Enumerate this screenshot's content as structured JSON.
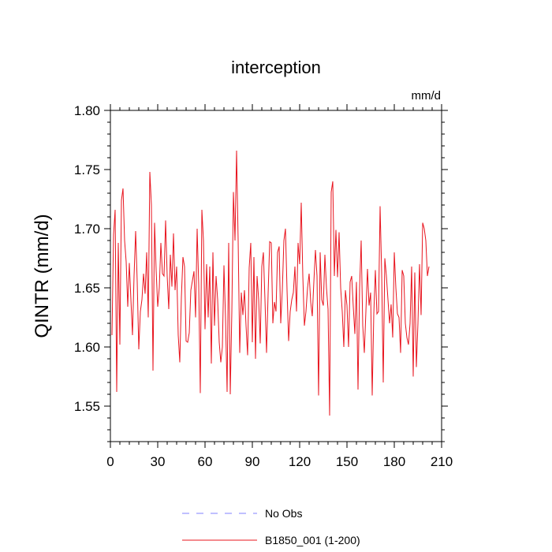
{
  "chart_data": {
    "type": "line",
    "title": "interception",
    "units_label": "mm/d",
    "ylabel": "QINTR  (mm/d)",
    "xlabel": "",
    "xlim": [
      0,
      210
    ],
    "ylim": [
      1.52,
      1.8
    ],
    "xticks": [
      0,
      30,
      60,
      90,
      120,
      150,
      180,
      210
    ],
    "xtick_labels": [
      "0",
      "30",
      "60",
      "90",
      "120",
      "150",
      "180",
      "210"
    ],
    "yticks": [
      1.55,
      1.6,
      1.65,
      1.7,
      1.75,
      1.8
    ],
    "ytick_labels": [
      "1.55",
      "1.60",
      "1.65",
      "1.70",
      "1.75",
      "1.80"
    ],
    "grid": false,
    "legend_position": "bottom-center",
    "series": [
      {
        "name": "No Obs",
        "color": "#8080ff",
        "style": "dashed",
        "values": []
      },
      {
        "name": "B1850_001 (1-200)",
        "color": "#e8141e",
        "style": "solid",
        "values": [
          1.61,
          1.695,
          1.716,
          1.562,
          1.688,
          1.602,
          1.724,
          1.734,
          1.69,
          1.672,
          1.634,
          1.671,
          1.64,
          1.61,
          1.66,
          1.698,
          1.655,
          1.598,
          1.63,
          1.64,
          1.662,
          1.645,
          1.68,
          1.625,
          1.748,
          1.72,
          1.58,
          1.705,
          1.665,
          1.634,
          1.65,
          1.688,
          1.662,
          1.66,
          1.707,
          1.66,
          1.632,
          1.678,
          1.651,
          1.696,
          1.648,
          1.668,
          1.61,
          1.587,
          1.642,
          1.676,
          1.668,
          1.605,
          1.604,
          1.612,
          1.648,
          1.656,
          1.664,
          1.625,
          1.7,
          1.652,
          1.561,
          1.716,
          1.69,
          1.615,
          1.67,
          1.625,
          1.668,
          1.586,
          1.68,
          1.618,
          1.66,
          1.64,
          1.604,
          1.587,
          1.6,
          1.669,
          1.624,
          1.562,
          1.688,
          1.56,
          1.63,
          1.731,
          1.69,
          1.766,
          1.69,
          1.595,
          1.646,
          1.627,
          1.648,
          1.618,
          1.593,
          1.667,
          1.688,
          1.604,
          1.676,
          1.59,
          1.66,
          1.64,
          1.603,
          1.668,
          1.68,
          1.64,
          1.595,
          1.645,
          1.689,
          1.688,
          1.62,
          1.638,
          1.63,
          1.68,
          1.685,
          1.62,
          1.648,
          1.69,
          1.7,
          1.648,
          1.605,
          1.63,
          1.64,
          1.646,
          1.668,
          1.63,
          1.688,
          1.67,
          1.722,
          1.66,
          1.618,
          1.63,
          1.65,
          1.662,
          1.638,
          1.626,
          1.655,
          1.682,
          1.66,
          1.559,
          1.68,
          1.64,
          1.635,
          1.678,
          1.65,
          1.632,
          1.542,
          1.731,
          1.74,
          1.66,
          1.699,
          1.659,
          1.697,
          1.65,
          1.63,
          1.6,
          1.648,
          1.635,
          1.6,
          1.655,
          1.66,
          1.634,
          1.611,
          1.655,
          1.564,
          1.65,
          1.69,
          1.618,
          1.595,
          1.63,
          1.666,
          1.635,
          1.646,
          1.559,
          1.628,
          1.665,
          1.628,
          1.63,
          1.719,
          1.662,
          1.57,
          1.675,
          1.66,
          1.64,
          1.62,
          1.636,
          1.608,
          1.68,
          1.65,
          1.628,
          1.625,
          1.595,
          1.665,
          1.66,
          1.62,
          1.608,
          1.602,
          1.62,
          1.668,
          1.575,
          1.663,
          1.583,
          1.62,
          1.67,
          1.627,
          1.705,
          1.7,
          1.69,
          1.66,
          1.668
        ]
      }
    ]
  }
}
